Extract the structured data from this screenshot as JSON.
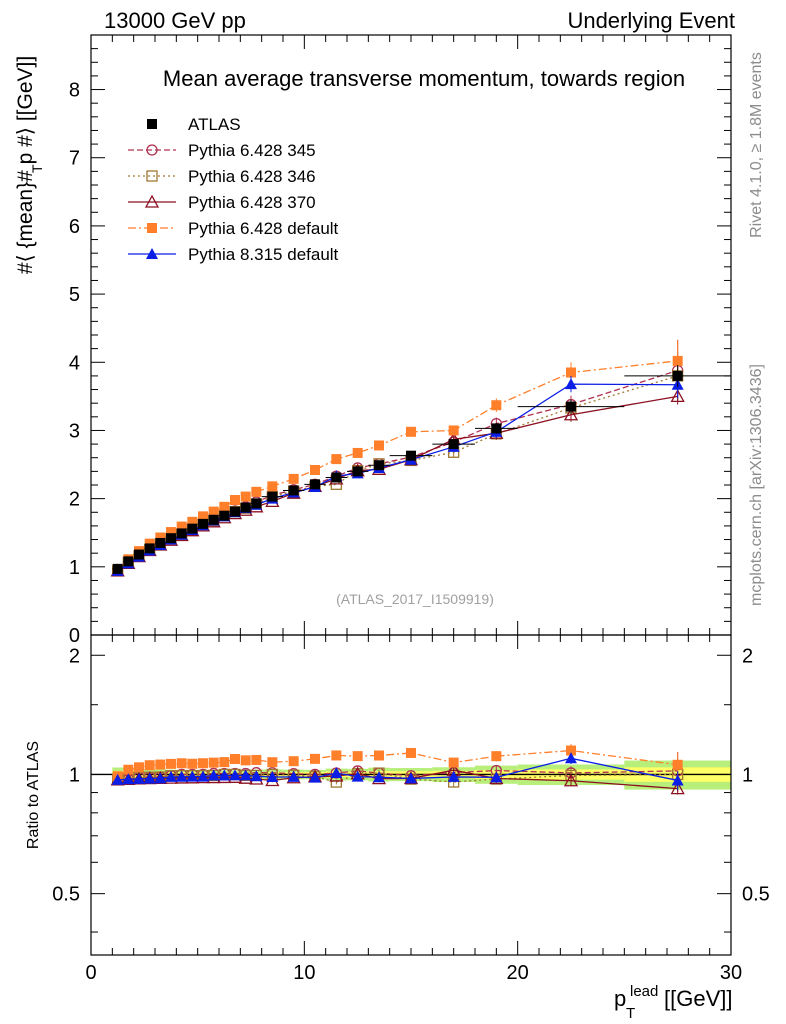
{
  "header": {
    "left": "13000 GeV pp",
    "right": "Underlying Event"
  },
  "side": {
    "rivet": "Rivet 4.1.0, ≥ 1.8M events",
    "mcplots": "mcplots.cern.ch [arXiv:1306.3436]"
  },
  "chart_data": {
    "type": "line",
    "title": "Mean average transverse momentum, towards region",
    "analysis_tag": "(ATLAS_2017_I1509919)",
    "xlabel_main": "p",
    "xlabel_sub": "T",
    "xlabel_sup": "lead",
    "xlabel_unit": "[[GeV]]",
    "ylabel": "#⟨ {mean}# p  #⟩ [[GeV]]",
    "ylabel_sub": "T",
    "ratio_ylabel": "Ratio to ATLAS",
    "xlim": [
      0,
      30
    ],
    "ylim": [
      0,
      8.8
    ],
    "ratio_ylim": [
      0.35,
      2.25
    ],
    "x_ticks": [
      0,
      10,
      20,
      30
    ],
    "x_tick_labels": [
      "0",
      "10",
      "20",
      "30"
    ],
    "y_ticks": [
      0,
      1,
      2,
      3,
      4,
      5,
      6,
      7,
      8
    ],
    "y_tick_labels": [
      "0",
      "1",
      "2",
      "3",
      "4",
      "5",
      "6",
      "7",
      "8"
    ],
    "ratio_ticks": [
      0.5,
      1,
      2
    ],
    "ratio_tick_labels": [
      "0.5",
      "1",
      "2"
    ],
    "x": [
      1.25,
      1.75,
      2.25,
      2.75,
      3.25,
      3.75,
      4.25,
      4.75,
      5.25,
      5.75,
      6.25,
      6.75,
      7.25,
      7.75,
      8.5,
      9.5,
      10.5,
      11.5,
      12.5,
      13.5,
      15,
      17,
      19,
      22.5,
      27.5
    ],
    "x_err": [
      0.25,
      0.25,
      0.25,
      0.25,
      0.25,
      0.25,
      0.25,
      0.25,
      0.25,
      0.25,
      0.25,
      0.25,
      0.25,
      0.25,
      0.5,
      0.5,
      0.5,
      0.5,
      0.5,
      0.5,
      1,
      1,
      1,
      2.5,
      2.5
    ],
    "data": {
      "name": "ATLAS",
      "values": [
        0.97,
        1.08,
        1.18,
        1.27,
        1.35,
        1.42,
        1.49,
        1.56,
        1.63,
        1.69,
        1.75,
        1.81,
        1.87,
        1.93,
        2.03,
        2.12,
        2.21,
        2.31,
        2.4,
        2.49,
        2.63,
        2.8,
        3.03,
        3.35,
        3.8
      ],
      "errors": [
        0.02,
        0.02,
        0.02,
        0.02,
        0.02,
        0.02,
        0.02,
        0.02,
        0.02,
        0.02,
        0.02,
        0.02,
        0.02,
        0.02,
        0.03,
        0.03,
        0.03,
        0.04,
        0.04,
        0.05,
        0.05,
        0.06,
        0.08,
        0.1,
        0.16
      ]
    },
    "series": [
      {
        "name": "Pythia 6.428 345",
        "color": "#b03050",
        "marker": "open-circle",
        "dash": "6,3",
        "values": [
          0.94,
          1.05,
          1.16,
          1.25,
          1.33,
          1.41,
          1.49,
          1.56,
          1.63,
          1.7,
          1.76,
          1.82,
          1.88,
          1.95,
          2.05,
          2.13,
          2.21,
          2.33,
          2.45,
          2.51,
          2.61,
          2.83,
          3.1,
          3.38,
          3.88
        ],
        "errors": [
          0.01,
          0.01,
          0.01,
          0.01,
          0.01,
          0.01,
          0.01,
          0.01,
          0.01,
          0.01,
          0.01,
          0.01,
          0.01,
          0.01,
          0.02,
          0.02,
          0.03,
          0.03,
          0.04,
          0.05,
          0.05,
          0.07,
          0.09,
          0.13,
          0.45
        ]
      },
      {
        "name": "Pythia 6.428 346",
        "color": "#a07830",
        "marker": "open-square",
        "dash": "2,3",
        "values": [
          0.94,
          1.06,
          1.16,
          1.25,
          1.33,
          1.41,
          1.48,
          1.55,
          1.62,
          1.68,
          1.75,
          1.81,
          1.86,
          1.92,
          2.03,
          2.11,
          2.18,
          2.21,
          2.41,
          2.51,
          2.56,
          2.68,
          2.95,
          3.33,
          3.8
        ],
        "errors": [
          0.01,
          0.01,
          0.01,
          0.01,
          0.01,
          0.01,
          0.01,
          0.01,
          0.01,
          0.01,
          0.01,
          0.01,
          0.01,
          0.01,
          0.02,
          0.02,
          0.03,
          0.03,
          0.04,
          0.05,
          0.05,
          0.07,
          0.09,
          0.13,
          0.35
        ]
      },
      {
        "name": "Pythia 6.428 370",
        "color": "#8b1020",
        "marker": "open-triangle",
        "dash": "",
        "values": [
          0.94,
          1.05,
          1.15,
          1.24,
          1.32,
          1.39,
          1.46,
          1.53,
          1.6,
          1.66,
          1.72,
          1.78,
          1.83,
          1.88,
          1.96,
          2.08,
          2.18,
          2.29,
          2.41,
          2.43,
          2.57,
          2.87,
          2.96,
          3.23,
          3.5
        ],
        "errors": [
          0.01,
          0.01,
          0.01,
          0.01,
          0.01,
          0.01,
          0.01,
          0.01,
          0.01,
          0.01,
          0.01,
          0.01,
          0.01,
          0.01,
          0.02,
          0.02,
          0.03,
          0.03,
          0.04,
          0.05,
          0.05,
          0.07,
          0.09,
          0.1,
          0.12
        ]
      },
      {
        "name": "Pythia 6.428 default",
        "color": "#ff7f2a",
        "marker": "filled-square",
        "dash": "8,3,2,3",
        "values": [
          0.96,
          1.11,
          1.23,
          1.34,
          1.43,
          1.51,
          1.59,
          1.66,
          1.74,
          1.81,
          1.88,
          1.98,
          2.03,
          2.1,
          2.18,
          2.29,
          2.42,
          2.58,
          2.67,
          2.78,
          2.98,
          3.0,
          3.37,
          3.85,
          4.02
        ],
        "errors": [
          0.01,
          0.01,
          0.01,
          0.01,
          0.01,
          0.01,
          0.01,
          0.01,
          0.01,
          0.01,
          0.01,
          0.01,
          0.01,
          0.02,
          0.02,
          0.03,
          0.03,
          0.04,
          0.05,
          0.05,
          0.06,
          0.07,
          0.1,
          0.15,
          0.3
        ]
      },
      {
        "name": "Pythia 8.315 default",
        "color": "#0a1ee6",
        "marker": "filled-triangle",
        "dash": "",
        "values": [
          0.94,
          1.05,
          1.15,
          1.24,
          1.32,
          1.4,
          1.47,
          1.54,
          1.61,
          1.68,
          1.74,
          1.8,
          1.86,
          1.91,
          2.0,
          2.09,
          2.17,
          2.33,
          2.37,
          2.45,
          2.57,
          2.76,
          2.98,
          3.68,
          3.67
        ],
        "errors": [
          0.01,
          0.01,
          0.01,
          0.01,
          0.01,
          0.01,
          0.01,
          0.01,
          0.01,
          0.01,
          0.01,
          0.01,
          0.01,
          0.01,
          0.02,
          0.02,
          0.03,
          0.03,
          0.04,
          0.05,
          0.05,
          0.07,
          0.09,
          0.12,
          0.2
        ]
      }
    ],
    "ratio_band": {
      "inner_color": "#ffff66",
      "outer_color": "#b8ee7a"
    },
    "legend_position": "top-left"
  }
}
